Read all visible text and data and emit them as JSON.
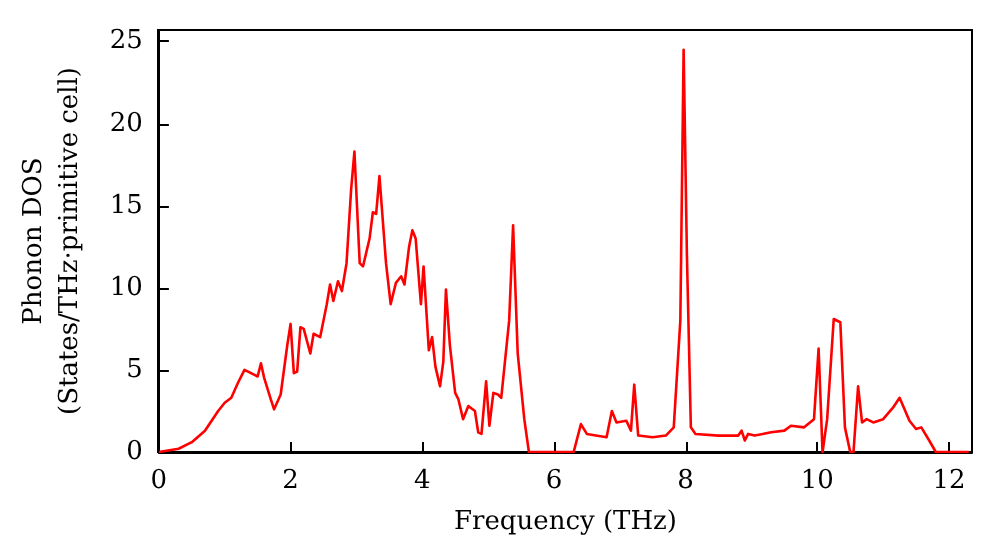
{
  "chart_data": {
    "type": "line",
    "xlabel": "Frequency (THz)",
    "ylabel": "Phonon DOS\n(States/THz·primitive cell)",
    "xlim": [
      0,
      12.35
    ],
    "xticks": [
      0,
      2,
      4,
      6,
      8,
      10,
      12
    ],
    "ylim": [
      0,
      25.7
    ],
    "yticks": [
      0,
      5,
      10,
      15,
      20,
      25
    ],
    "grid": false,
    "marker": "none",
    "line_style": "solid",
    "series": [
      {
        "color": "#ff0000",
        "x": [
          0,
          0.3,
          0.5,
          0.7,
          0.9,
          1.0,
          1.1,
          1.2,
          1.3,
          1.4,
          1.5,
          1.55,
          1.6,
          1.7,
          1.75,
          1.85,
          1.95,
          2.0,
          2.05,
          2.1,
          2.15,
          2.2,
          2.3,
          2.35,
          2.45,
          2.55,
          2.6,
          2.65,
          2.72,
          2.78,
          2.85,
          2.92,
          2.97,
          3.05,
          3.1,
          3.2,
          3.25,
          3.3,
          3.35,
          3.45,
          3.52,
          3.6,
          3.68,
          3.73,
          3.8,
          3.85,
          3.9,
          3.98,
          4.02,
          4.1,
          4.15,
          4.2,
          4.27,
          4.32,
          4.36,
          4.42,
          4.5,
          4.55,
          4.62,
          4.7,
          4.8,
          4.85,
          4.9,
          4.97,
          5.02,
          5.08,
          5.15,
          5.2,
          5.32,
          5.38,
          5.45,
          5.55,
          5.62,
          6.3,
          6.41,
          6.5,
          6.8,
          6.88,
          6.95,
          7.1,
          7.17,
          7.22,
          7.28,
          7.5,
          7.7,
          7.82,
          7.92,
          7.97,
          8.02,
          8.08,
          8.15,
          8.5,
          8.8,
          8.85,
          8.9,
          8.95,
          9.05,
          9.3,
          9.5,
          9.6,
          9.8,
          9.95,
          10.02,
          10.08,
          10.15,
          10.25,
          10.35,
          10.42,
          10.5,
          10.55,
          10.62,
          10.68,
          10.75,
          10.85,
          11.0,
          11.15,
          11.25,
          11.4,
          11.5,
          11.58,
          11.7,
          11.8,
          12.3
        ],
        "values": [
          0,
          0.2,
          0.6,
          1.3,
          2.5,
          3.0,
          3.3,
          4.2,
          5.0,
          4.8,
          4.6,
          5.4,
          4.5,
          3.2,
          2.6,
          3.5,
          6.5,
          7.8,
          4.8,
          4.9,
          7.6,
          7.5,
          6.0,
          7.2,
          7.0,
          9.0,
          10.2,
          9.2,
          10.4,
          9.8,
          11.5,
          16,
          18.3,
          11.5,
          11.3,
          13.0,
          14.6,
          14.5,
          16.8,
          11.5,
          9.0,
          10.3,
          10.7,
          10.2,
          12.5,
          13.5,
          13.0,
          9.0,
          11.3,
          6.2,
          7.0,
          5.2,
          4.0,
          5.5,
          9.9,
          6.5,
          3.6,
          3.2,
          2.0,
          2.8,
          2.5,
          1.2,
          1.1,
          4.3,
          1.6,
          3.6,
          3.5,
          3.3,
          8,
          13.8,
          6,
          2,
          0,
          0,
          1.7,
          1.1,
          0.9,
          2.5,
          1.8,
          1.9,
          1.3,
          4.1,
          1.0,
          0.9,
          1.0,
          1.5,
          8,
          24.5,
          12,
          1.5,
          1.1,
          1.0,
          1.0,
          1.3,
          0.7,
          1.1,
          1.0,
          1.2,
          1.3,
          1.6,
          1.5,
          2.0,
          6.3,
          0,
          2,
          8.1,
          7.9,
          1.5,
          0,
          0,
          4.0,
          1.8,
          2.0,
          1.8,
          2.0,
          2.7,
          3.3,
          1.9,
          1.4,
          1.5,
          0.7,
          0,
          0
        ]
      }
    ]
  }
}
